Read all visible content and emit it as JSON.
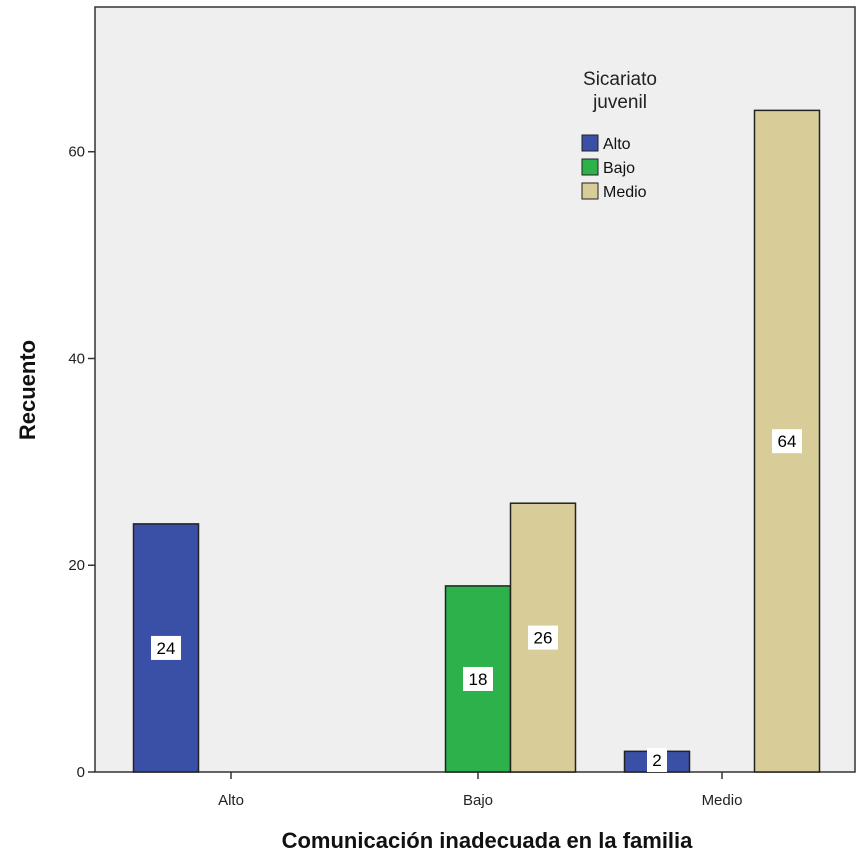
{
  "chart_data": {
    "type": "bar",
    "categories": [
      "Alto",
      "Bajo",
      "Medio"
    ],
    "series": [
      {
        "name": "Alto",
        "values": [
          24,
          null,
          2
        ],
        "color": "#3a50a6"
      },
      {
        "name": "Bajo",
        "values": [
          null,
          18,
          null
        ],
        "color": "#2db14b"
      },
      {
        "name": "Medio",
        "values": [
          null,
          26,
          64
        ],
        "color": "#d8cc98"
      }
    ],
    "xlabel": "Comunicación inadecuada en la familia",
    "ylabel": "Recuento",
    "ylim": [
      0,
      74
    ],
    "yticks": [
      0,
      20,
      40,
      60
    ],
    "legend": {
      "title_lines": [
        "Sicariato",
        "juvenil"
      ],
      "placement": "top-center"
    },
    "plot_background": "#efefef",
    "grid": false
  }
}
